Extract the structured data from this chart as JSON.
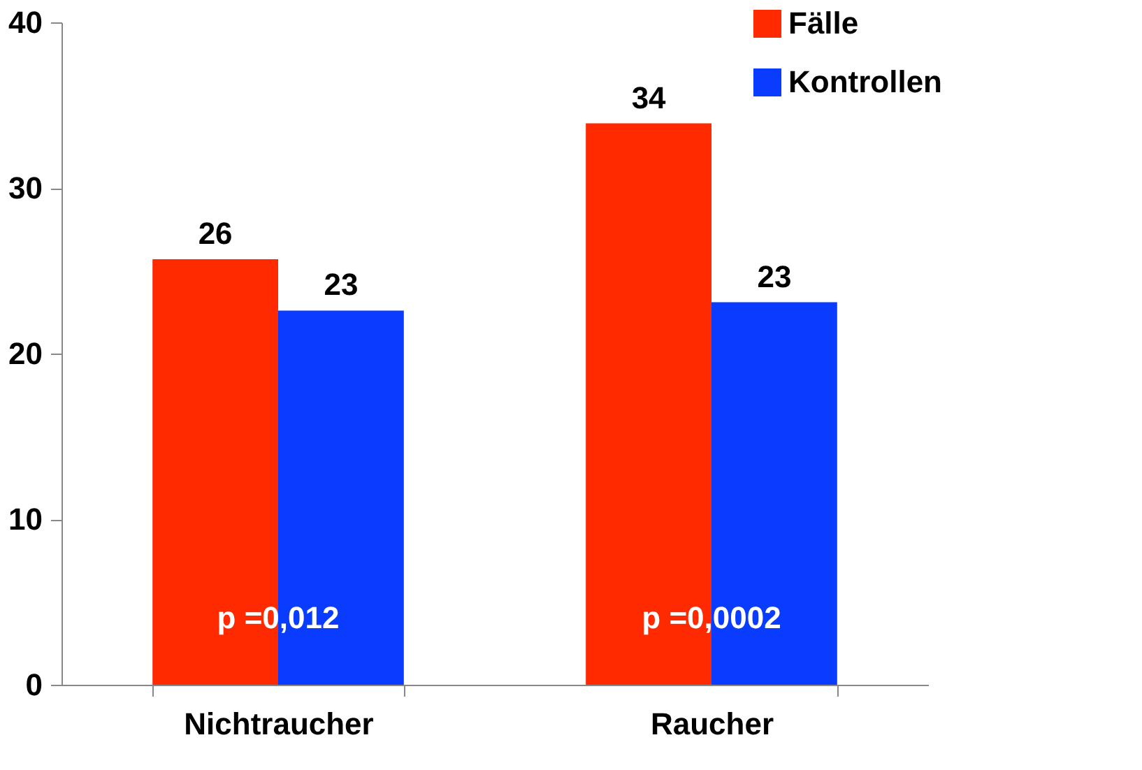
{
  "chart_data": {
    "type": "bar",
    "categories": [
      "Nichtraucher",
      "Raucher"
    ],
    "series": [
      {
        "name": "Fälle",
        "color": "#ff2a00",
        "values": [
          25.7,
          33.9
        ],
        "value_labels": [
          "26",
          "34"
        ]
      },
      {
        "name": "Kontrollen",
        "color": "#0a3cff",
        "values": [
          22.6,
          23.1
        ],
        "value_labels": [
          "23",
          "23"
        ]
      }
    ],
    "ylim": [
      0,
      40
    ],
    "yticks": [
      0,
      10,
      20,
      30,
      40
    ],
    "grid": false,
    "legend": "top right",
    "annotations": [
      {
        "text": "p =0,012",
        "x": "Nichtraucher",
        "y": 4
      },
      {
        "text": "p =0,0002",
        "x": "Raucher",
        "y": 4
      }
    ]
  }
}
